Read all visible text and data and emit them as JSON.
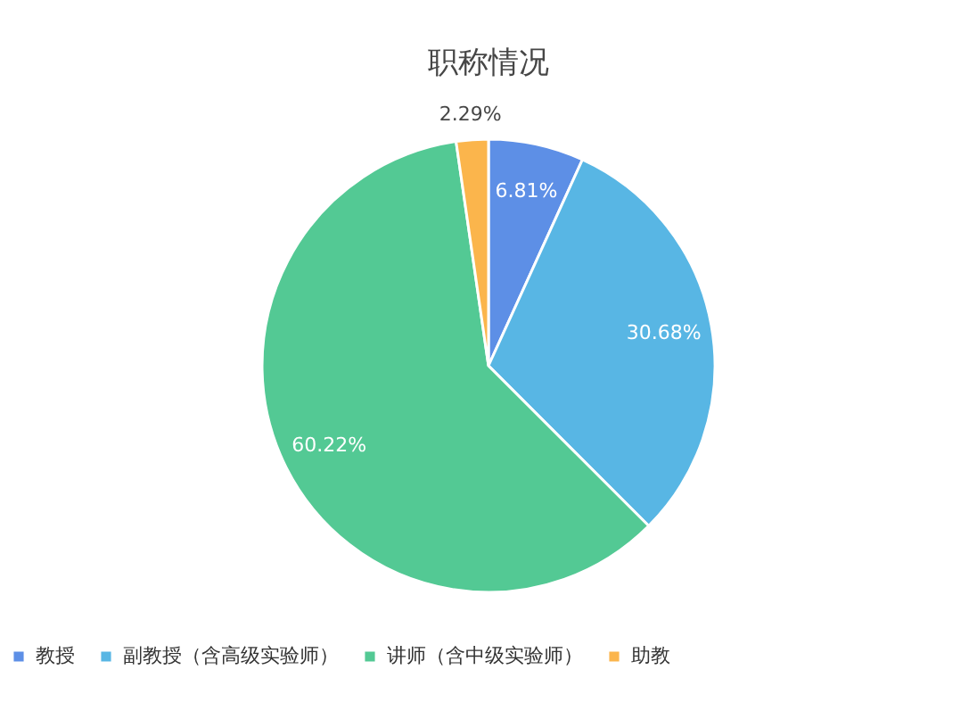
{
  "chart_data": {
    "type": "pie",
    "title": "职称情况",
    "categories": [
      "教授",
      "副教授（含高级实验师）",
      "讲师（含中级实验师）",
      "助教"
    ],
    "values": [
      6.81,
      30.68,
      60.22,
      2.29
    ],
    "colors": [
      "#5d8fe6",
      "#58b6e4",
      "#53c994",
      "#fbb54c"
    ],
    "value_labels": [
      "6.81%",
      "30.68%",
      "60.22%",
      "2.29%"
    ],
    "legend": "bottom"
  }
}
